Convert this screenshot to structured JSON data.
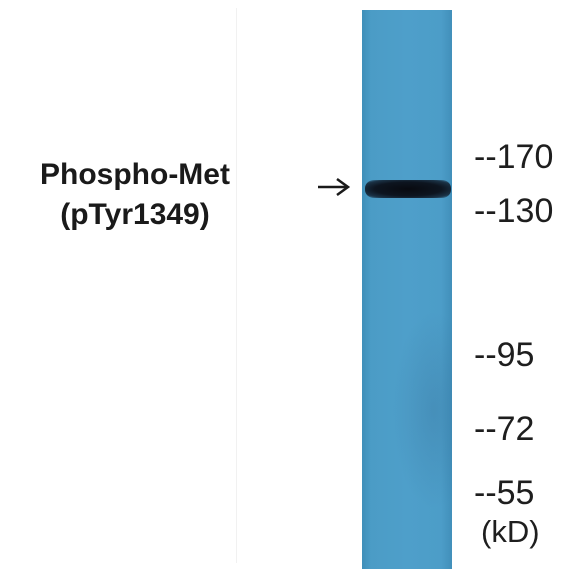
{
  "protein": {
    "name": "Phospho-Met",
    "site": "(pTyr1349)"
  },
  "blot": {
    "lane_color": "#4e9fca",
    "band_color": "#0a0e15",
    "arrow_icon": "right-arrow-icon"
  },
  "markers": [
    {
      "label": "--170"
    },
    {
      "label": "--130"
    },
    {
      "label": "--95"
    },
    {
      "label": "--72"
    },
    {
      "label": "--55"
    }
  ],
  "unit": "(kD)"
}
